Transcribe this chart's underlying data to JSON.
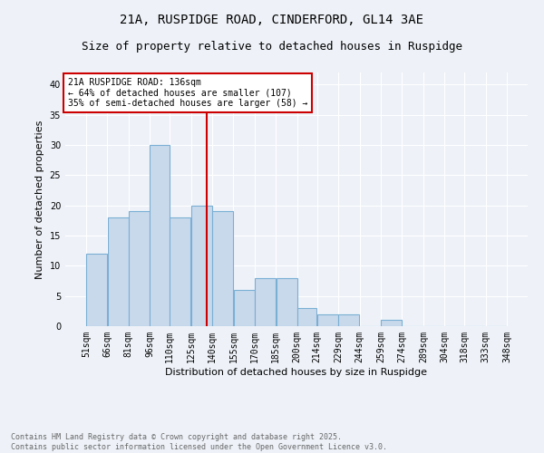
{
  "title": "21A, RUSPIDGE ROAD, CINDERFORD, GL14 3AE",
  "subtitle": "Size of property relative to detached houses in Ruspidge",
  "xlabel": "Distribution of detached houses by size in Ruspidge",
  "ylabel": "Number of detached properties",
  "bin_edges": [
    51,
    66,
    81,
    96,
    110,
    125,
    140,
    155,
    170,
    185,
    200,
    214,
    229,
    244,
    259,
    274,
    289,
    304,
    318,
    333,
    348
  ],
  "bin_labels": [
    "51sqm",
    "66sqm",
    "81sqm",
    "96sqm",
    "110sqm",
    "125sqm",
    "140sqm",
    "155sqm",
    "170sqm",
    "185sqm",
    "200sqm",
    "214sqm",
    "229sqm",
    "244sqm",
    "259sqm",
    "274sqm",
    "289sqm",
    "304sqm",
    "318sqm",
    "333sqm",
    "348sqm"
  ],
  "values": [
    12,
    18,
    19,
    30,
    18,
    20,
    19,
    6,
    8,
    8,
    3,
    2,
    2,
    0,
    1,
    0,
    0,
    0,
    0,
    0
  ],
  "bar_color": "#c9d9ec",
  "bar_edge_color": "#7aafd4",
  "vline_x": 136,
  "vline_color": "#cc0000",
  "annotation_text": "21A RUSPIDGE ROAD: 136sqm\n← 64% of detached houses are smaller (107)\n35% of semi-detached houses are larger (58) →",
  "annotation_box_color": "#ffffff",
  "annotation_box_edgecolor": "#cc0000",
  "ylim": [
    0,
    42
  ],
  "yticks": [
    0,
    5,
    10,
    15,
    20,
    25,
    30,
    35,
    40
  ],
  "bg_color": "#eef2f8",
  "footer": "Contains HM Land Registry data © Crown copyright and database right 2025.\nContains public sector information licensed under the Open Government Licence v3.0.",
  "title_fontsize": 10,
  "subtitle_fontsize": 9,
  "label_fontsize": 8,
  "tick_fontsize": 7,
  "annotation_fontsize": 7,
  "footer_fontsize": 6
}
